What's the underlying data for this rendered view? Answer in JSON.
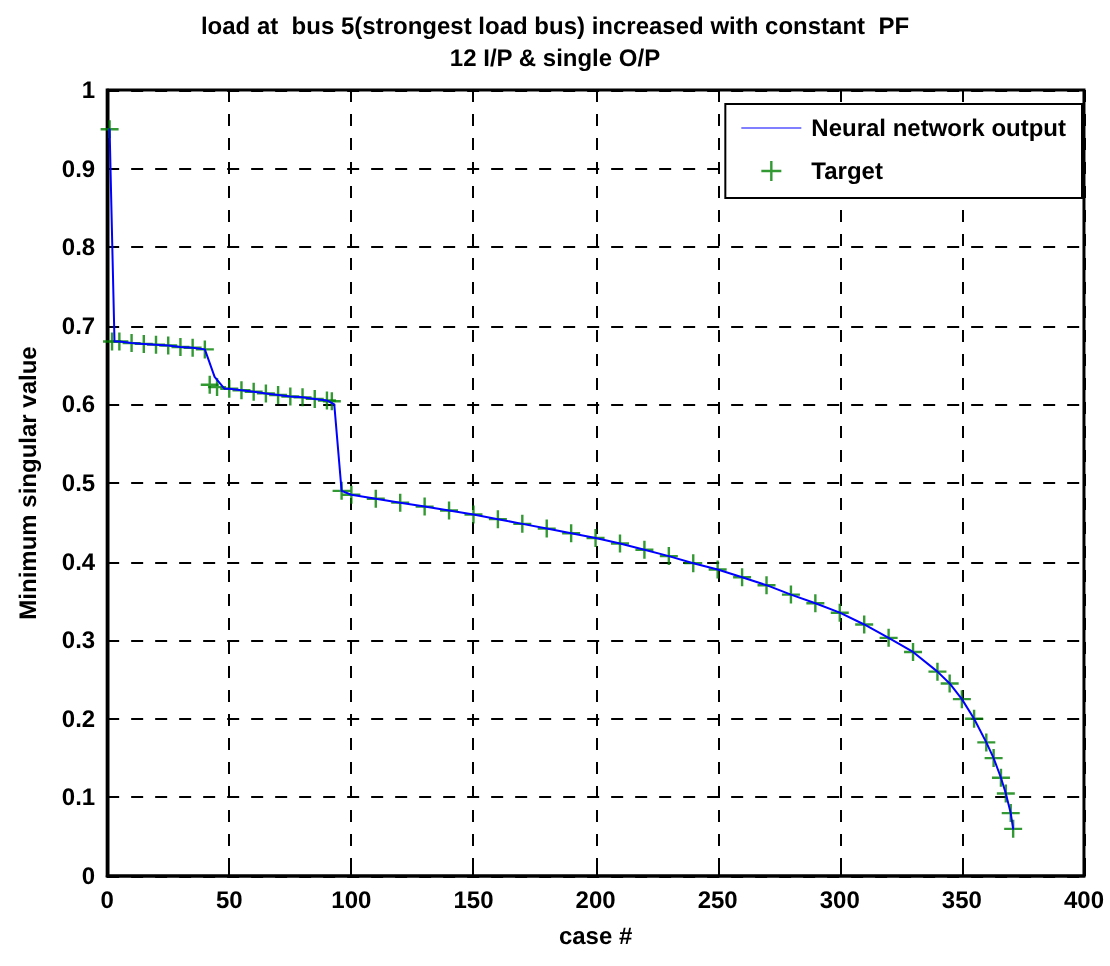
{
  "chart_data": {
    "type": "line",
    "title": "load at  bus 5(strongest load bus) increased with constant  PF",
    "subtitle": "12 I/P & single O/P",
    "xlabel": "case #",
    "ylabel": "Minimum singular value",
    "xlim": [
      0,
      400
    ],
    "xticks": [
      0,
      50,
      100,
      150,
      200,
      250,
      300,
      350,
      400
    ],
    "ylim": [
      0,
      1
    ],
    "yticks": [
      0,
      0.1,
      0.2,
      0.3,
      0.4,
      0.5,
      0.6,
      0.7,
      0.8,
      0.9,
      1
    ],
    "grid": true,
    "legend": "top right",
    "series": [
      {
        "name": "Neural network output",
        "type": "line",
        "color": "#0000ff",
        "marker": "none",
        "line_style": "solid",
        "x": [
          1,
          3,
          5,
          10,
          15,
          20,
          25,
          30,
          35,
          40,
          44,
          48,
          50,
          55,
          60,
          65,
          70,
          75,
          80,
          85,
          90,
          93,
          96,
          100,
          110,
          120,
          130,
          140,
          150,
          160,
          170,
          180,
          190,
          200,
          210,
          220,
          230,
          240,
          250,
          260,
          270,
          280,
          290,
          300,
          310,
          320,
          330,
          340,
          345,
          350,
          355,
          360,
          363,
          366,
          368,
          370,
          371
        ],
        "values": [
          0.95,
          0.68,
          0.68,
          0.678,
          0.677,
          0.676,
          0.675,
          0.673,
          0.672,
          0.67,
          0.635,
          0.62,
          0.62,
          0.618,
          0.616,
          0.614,
          0.612,
          0.61,
          0.609,
          0.607,
          0.605,
          0.6,
          0.49,
          0.485,
          0.48,
          0.475,
          0.47,
          0.465,
          0.46,
          0.454,
          0.448,
          0.442,
          0.436,
          0.43,
          0.423,
          0.415,
          0.407,
          0.398,
          0.39,
          0.38,
          0.37,
          0.358,
          0.347,
          0.335,
          0.32,
          0.303,
          0.285,
          0.26,
          0.245,
          0.225,
          0.2,
          0.17,
          0.15,
          0.125,
          0.105,
          0.08,
          0.06
        ]
      },
      {
        "name": "Target",
        "type": "scatter",
        "color": "#008000",
        "marker": "cross",
        "x": [
          1,
          2,
          5,
          10,
          15,
          20,
          25,
          30,
          35,
          40,
          42,
          45,
          50,
          55,
          60,
          65,
          70,
          75,
          80,
          85,
          90,
          92,
          96,
          100,
          110,
          120,
          130,
          140,
          150,
          160,
          170,
          180,
          190,
          200,
          210,
          220,
          230,
          240,
          250,
          260,
          270,
          280,
          290,
          300,
          310,
          320,
          330,
          340,
          345,
          350,
          355,
          360,
          363,
          366,
          368,
          370,
          371
        ],
        "values": [
          0.95,
          0.68,
          0.68,
          0.678,
          0.677,
          0.676,
          0.675,
          0.673,
          0.672,
          0.67,
          0.625,
          0.622,
          0.62,
          0.618,
          0.616,
          0.614,
          0.612,
          0.61,
          0.609,
          0.607,
          0.605,
          0.604,
          0.49,
          0.485,
          0.48,
          0.475,
          0.47,
          0.465,
          0.46,
          0.454,
          0.448,
          0.442,
          0.436,
          0.43,
          0.423,
          0.415,
          0.407,
          0.398,
          0.39,
          0.38,
          0.37,
          0.358,
          0.347,
          0.335,
          0.32,
          0.303,
          0.285,
          0.26,
          0.245,
          0.225,
          0.2,
          0.17,
          0.15,
          0.125,
          0.105,
          0.08,
          0.06
        ]
      }
    ]
  }
}
